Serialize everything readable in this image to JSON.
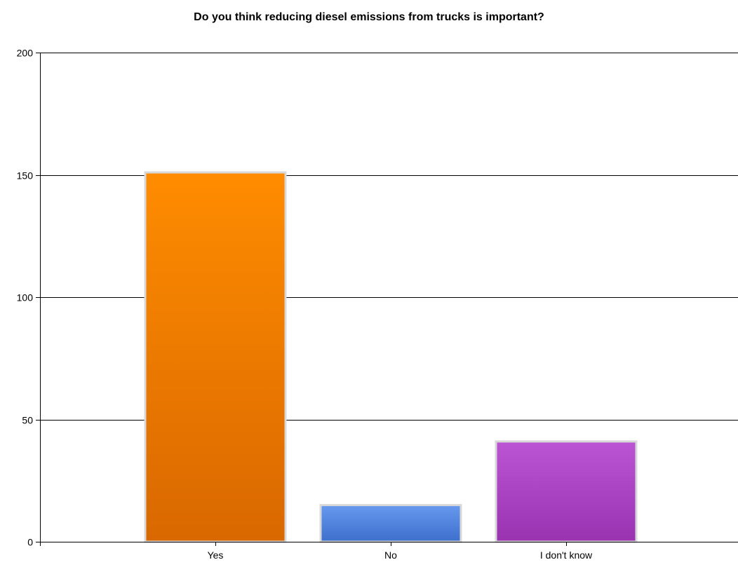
{
  "chart_data": {
    "type": "bar",
    "title": "Do you think reducing diesel emissions from trucks is important?",
    "xlabel": "",
    "ylabel": "",
    "categories": [
      "Yes",
      "No",
      "I don't know"
    ],
    "values": [
      151,
      15,
      41
    ],
    "ylim": [
      0,
      200
    ],
    "yticks": [
      0,
      50,
      100,
      150,
      200
    ],
    "ytick_labels": [
      "0",
      "50",
      "100",
      "150",
      "200"
    ],
    "grid": true,
    "legend": "none",
    "bar_colors": [
      {
        "top": "#ff8c00",
        "bottom": "#d96800"
      },
      {
        "top": "#6699ee",
        "bottom": "#3d6fcc"
      },
      {
        "top": "#bb55d4",
        "bottom": "#9933b0"
      }
    ],
    "bar_border_color": "#d8d8d8"
  }
}
